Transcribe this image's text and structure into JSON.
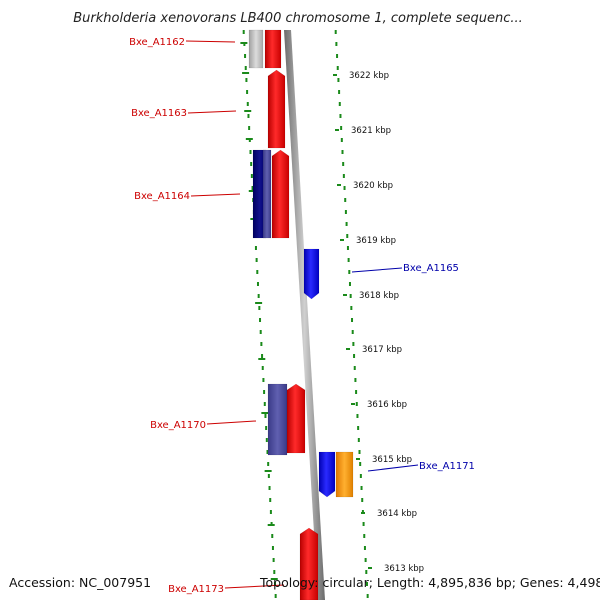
{
  "title": "Burkholderia xenovorans LB400 chromosome 1, complete sequenc...",
  "footer": {
    "accession": "Accession: NC_007951",
    "summary": "Topology: circular; Length: 4,895,836 bp; Genes: 4,498"
  },
  "ticks": [
    "3622 kbp",
    "3621 kbp",
    "3620 kbp",
    "3619 kbp",
    "3618 kbp",
    "3617 kbp",
    "3616 kbp",
    "3615 kbp",
    "3614 kbp",
    "3613 kbp"
  ],
  "genes": [
    {
      "label": "Bxe_A1162",
      "side": "left",
      "color": "#cc0000"
    },
    {
      "label": "Bxe_A1163",
      "side": "left",
      "color": "#cc0000"
    },
    {
      "label": "Bxe_A1164",
      "side": "left",
      "color": "#cc0000"
    },
    {
      "label": "Bxe_A1165",
      "side": "right",
      "color": "#0000aa"
    },
    {
      "label": "Bxe_A1170",
      "side": "left",
      "color": "#cc0000"
    },
    {
      "label": "Bxe_A1171",
      "side": "right",
      "color": "#0000aa"
    },
    {
      "label": "Bxe_A1173",
      "side": "left",
      "color": "#cc0000"
    }
  ],
  "colors": {
    "forward": "#ff0000",
    "reverse": "#0000ff",
    "orange": "#ff9900",
    "navy": "#0a0a80",
    "slate": "#4a4a9a",
    "grey": "#b8b8b8",
    "backbone": "#808080",
    "dots": "#1a8a1a"
  }
}
